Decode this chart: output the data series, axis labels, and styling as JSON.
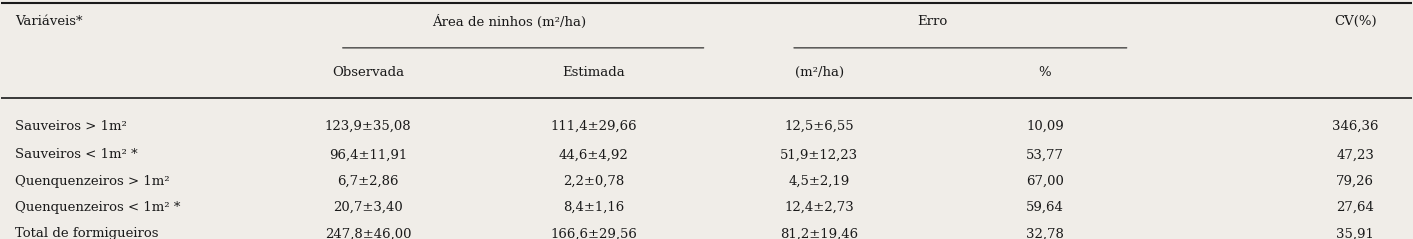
{
  "col_headers_row1": [
    "Variáveis*",
    "Área de ninhos (m²/ha)",
    "",
    "Erro",
    "",
    "CV(%)"
  ],
  "col_headers_row2": [
    "",
    "Observada",
    "Estimada",
    "(m²/ha)",
    "%",
    ""
  ],
  "rows": [
    [
      "Sauveiros > 1m²",
      "123,9±35,08",
      "111,4±29,66",
      "12,5±6,55",
      "10,09",
      "346,36"
    ],
    [
      "Sauveiros < 1m² *",
      "96,4±11,91",
      "44,6±4,92",
      "51,9±12,23",
      "53,77",
      "47,23"
    ],
    [
      "Quenquenzeiros > 1m²",
      "6,7±2,86",
      "2,2±0,78",
      "4,5±2,19",
      "67,00",
      "79,26"
    ],
    [
      "Quenquenzeiros < 1m² *",
      "20,7±3,40",
      "8,4±1,16",
      "12,4±2,73",
      "59,64",
      "27,64"
    ],
    [
      "Total de formigueiros",
      "247,8±46,00",
      "166,6±29,56",
      "81,2±19,46",
      "32,78",
      "35,91"
    ]
  ],
  "bg_color": "#f0ede8",
  "text_color": "#1a1a1a",
  "font_size": 9.5,
  "header_font_size": 9.5
}
